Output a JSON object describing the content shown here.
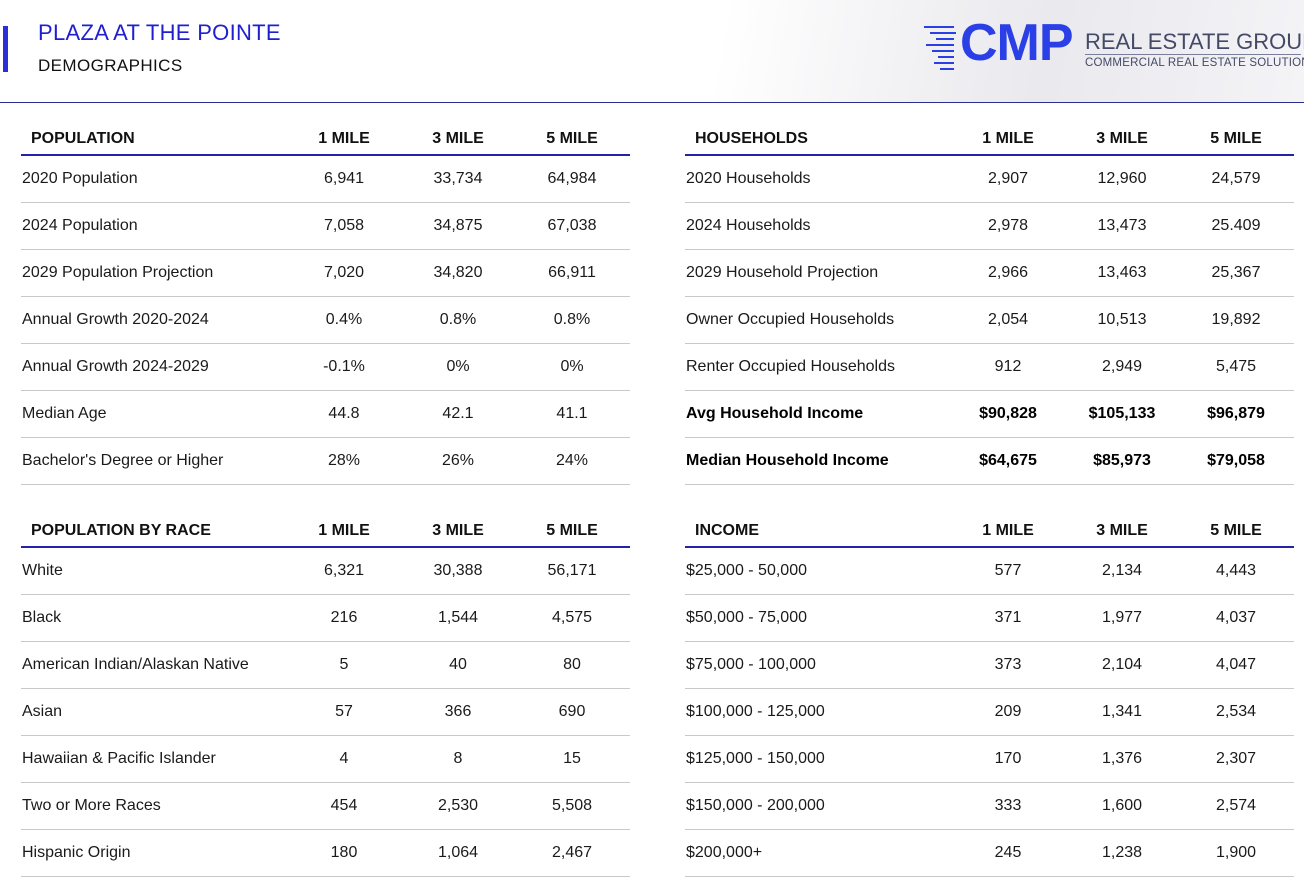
{
  "header": {
    "title": "PLAZA AT THE POINTE",
    "subtitle": "DEMOGRAPHICS",
    "logo": {
      "mark": "CMP",
      "line1": "REAL ESTATE GROUP",
      "line2": "COMMERCIAL REAL ESTATE SOLUTIONS"
    }
  },
  "colors": {
    "accent": "#2b2fd6",
    "title": "#1f1fd0",
    "logo": "#2b3fe6",
    "rule": "#2222aa"
  },
  "population": {
    "headers": [
      "POPULATION",
      "1 MILE",
      "3 MILE",
      "5 MILE"
    ],
    "rows": [
      [
        "2020 Population",
        "6,941",
        "33,734",
        "64,984"
      ],
      [
        "2024 Population",
        "7,058",
        "34,875",
        "67,038"
      ],
      [
        "2029 Population Projection",
        "7,020",
        "34,820",
        "66,911"
      ],
      [
        "Annual Growth 2020-2024",
        "0.4%",
        "0.8%",
        "0.8%"
      ],
      [
        "Annual Growth 2024-2029",
        "-0.1%",
        "0%",
        "0%"
      ],
      [
        "Median Age",
        "44.8",
        "42.1",
        "41.1"
      ],
      [
        "Bachelor's Degree or Higher",
        "28%",
        "26%",
        "24%"
      ]
    ]
  },
  "households": {
    "headers": [
      "HOUSEHOLDS",
      "1 MILE",
      "3 MILE",
      "5 MILE"
    ],
    "rows": [
      [
        "2020 Households",
        "2,907",
        "12,960",
        "24,579"
      ],
      [
        "2024 Households",
        "2,978",
        "13,473",
        "25.409"
      ],
      [
        "2029 Household Projection",
        "2,966",
        "13,463",
        "25,367"
      ],
      [
        "Owner Occupied Households",
        "2,054",
        "10,513",
        "19,892"
      ],
      [
        "Renter Occupied Households",
        "912",
        "2,949",
        "5,475"
      ],
      [
        "Avg Household Income",
        "$90,828",
        "$105,133",
        "$96,879"
      ],
      [
        "Median Household Income",
        "$64,675",
        "$85,973",
        "$79,058"
      ]
    ]
  },
  "race": {
    "headers": [
      "POPULATION BY RACE",
      "1 MILE",
      "3 MILE",
      "5 MILE"
    ],
    "rows": [
      [
        "White",
        "6,321",
        "30,388",
        "56,171"
      ],
      [
        "Black",
        "216",
        "1,544",
        "4,575"
      ],
      [
        "American Indian/Alaskan Native",
        "5",
        "40",
        "80"
      ],
      [
        "Asian",
        "57",
        "366",
        "690"
      ],
      [
        "Hawaiian & Pacific Islander",
        "4",
        "8",
        "15"
      ],
      [
        "Two or More Races",
        "454",
        "2,530",
        "5,508"
      ],
      [
        "Hispanic Origin",
        "180",
        "1,064",
        "2,467"
      ]
    ]
  },
  "income": {
    "headers": [
      "INCOME",
      "1 MILE",
      "3 MILE",
      "5 MILE"
    ],
    "rows": [
      [
        "$25,000 - 50,000",
        "577",
        "2,134",
        "4,443"
      ],
      [
        "$50,000 - 75,000",
        "371",
        "1,977",
        "4,037"
      ],
      [
        "$75,000 - 100,000",
        "373",
        "2,104",
        "4,047"
      ],
      [
        "$100,000 - 125,000",
        "209",
        "1,341",
        "2,534"
      ],
      [
        "$125,000 - 150,000",
        "170",
        "1,376",
        "2,307"
      ],
      [
        "$150,000 - 200,000",
        "333",
        "1,600",
        "2,574"
      ],
      [
        "$200,000+",
        "245",
        "1,238",
        "1,900"
      ]
    ]
  }
}
